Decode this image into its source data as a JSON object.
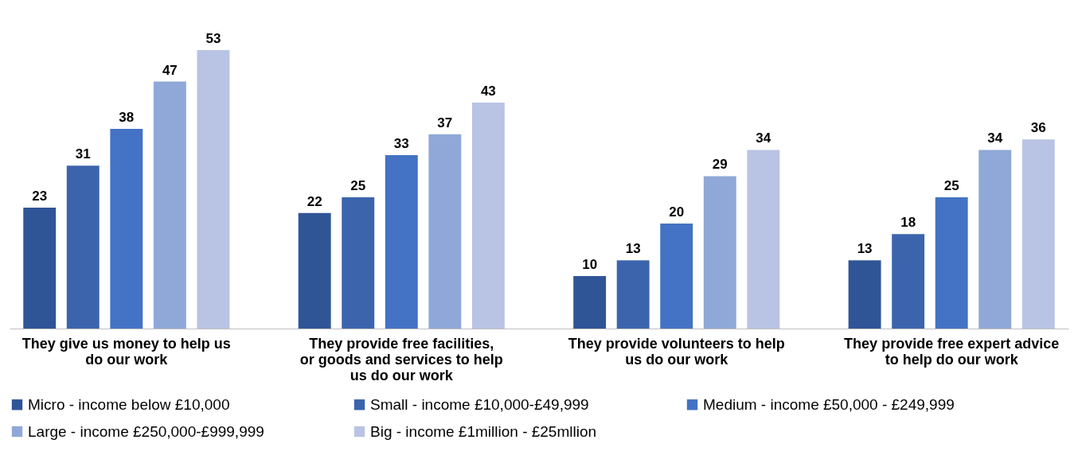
{
  "chart_data": {
    "type": "bar",
    "categories": [
      "They give us money to help us do our work",
      "They provide free facilities, or goods and services to help us do our work",
      "They provide volunteers to help us do our work",
      "They provide free expert advice to help do our work"
    ],
    "series": [
      {
        "name": "Micro - income below £10,000",
        "color": "#2f5597",
        "values": [
          23,
          22,
          10,
          13
        ]
      },
      {
        "name": "Small - income £10,000-£49,999",
        "color": "#3b64ad",
        "values": [
          31,
          25,
          13,
          18
        ]
      },
      {
        "name": "Medium - income £50,000 - £249,999",
        "color": "#4472c4",
        "values": [
          38,
          33,
          20,
          25
        ]
      },
      {
        "name": "Large - income £250,000-£999,999",
        "color": "#8fa8d8",
        "values": [
          47,
          37,
          29,
          34
        ]
      },
      {
        "name": "Big - income £1million - £25mllion",
        "color": "#b9c4e4",
        "values": [
          53,
          43,
          34,
          36
        ]
      }
    ],
    "data_labels": true,
    "grid": false,
    "legend": "bottom"
  }
}
